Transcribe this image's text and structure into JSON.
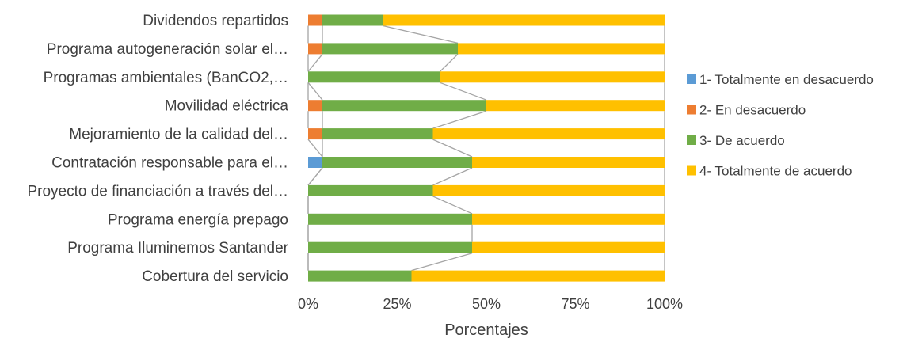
{
  "chart_data": {
    "type": "bar",
    "orientation": "horizontal",
    "stacked": "percent",
    "categories": [
      "Dividendos repartidos",
      "Programa autogeneración solar el…",
      "Programas ambientales (BanCO2,…",
      "Movilidad eléctrica",
      "Mejoramiento de la calidad del…",
      "Contratación responsable para el…",
      "Proyecto de financiación a través del…",
      "Programa energía prepago",
      "Programa Iluminemos Santander",
      "Cobertura del servicio"
    ],
    "series": [
      {
        "name": "1- Totalmente en desacuerdo",
        "color": "#5B9BD5",
        "values": [
          0,
          0,
          0,
          0,
          0,
          4,
          0,
          0,
          0,
          0
        ]
      },
      {
        "name": "2- En desacuerdo",
        "color": "#ED7D31",
        "values": [
          4,
          4,
          0,
          4,
          4,
          0,
          0,
          0,
          0,
          0
        ]
      },
      {
        "name": "3- De acuerdo",
        "color": "#70AD47",
        "values": [
          17,
          38,
          37,
          46,
          31,
          42,
          35,
          46,
          46,
          29
        ]
      },
      {
        "name": "4- Totalmente de acuerdo",
        "color": "#FFC000",
        "values": [
          79,
          58,
          63,
          50,
          65,
          54,
          65,
          54,
          54,
          71
        ]
      }
    ],
    "xlabel": "Porcentajes",
    "xticks": [
      "0%",
      "25%",
      "50%",
      "75%",
      "100%"
    ],
    "xlim": [
      0,
      100
    ],
    "series_lines": true,
    "legend_position": "right",
    "grid": false
  }
}
